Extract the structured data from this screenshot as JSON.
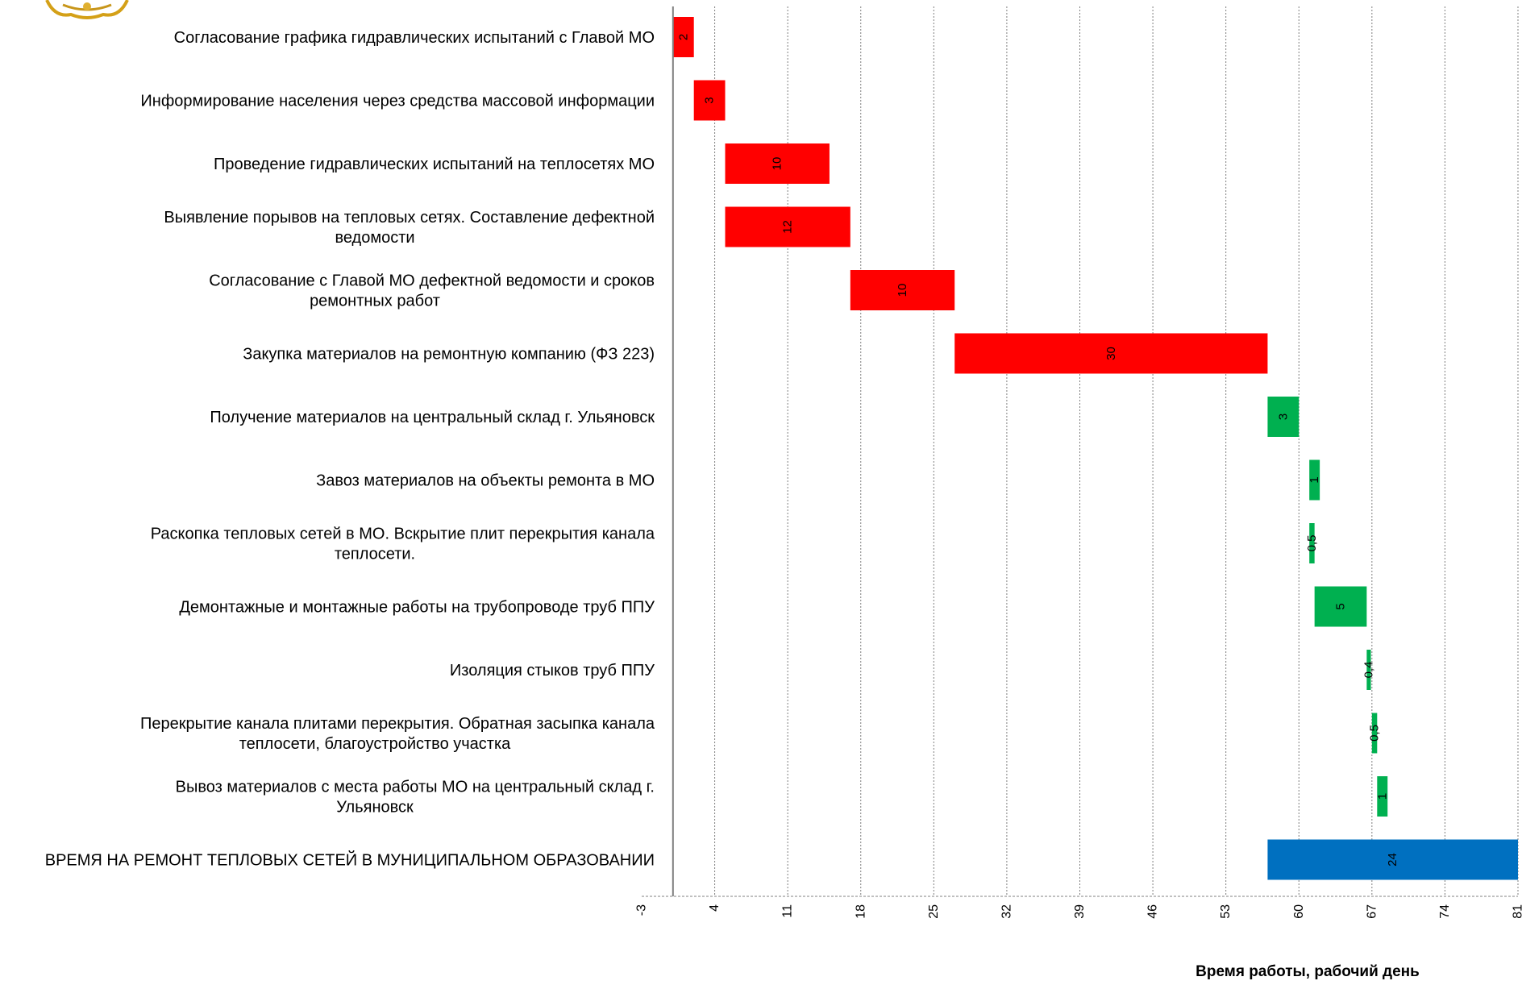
{
  "chart_data": {
    "type": "bar",
    "orientation": "horizontal",
    "stacked_offset": true,
    "xlabel": "Время работы, рабочий день",
    "xlim": [
      -3,
      81
    ],
    "xticks": [
      -3,
      4,
      11,
      18,
      25,
      32,
      39,
      46,
      53,
      60,
      67,
      74,
      81
    ],
    "grid": "vertical-dotted",
    "colors": {
      "red": "#ff0000",
      "green": "#00b050",
      "blue": "#0070c0"
    },
    "tasks": [
      {
        "label": "Согласование графика гидравлических испытаний с Главой МО",
        "start": 0,
        "duration": 2,
        "duration_label": "2",
        "color": "#ff0000"
      },
      {
        "label": "Информирование населения через средства массовой информации",
        "start": 2,
        "duration": 3,
        "duration_label": "3",
        "color": "#ff0000"
      },
      {
        "label": "Проведение гидравлических испытаний на теплосетях МО",
        "start": 5,
        "duration": 10,
        "duration_label": "10",
        "color": "#ff0000"
      },
      {
        "label": "Выявление порывов на тепловых сетях. Составление дефектной ведомости",
        "start": 5,
        "duration": 12,
        "duration_label": "12",
        "color": "#ff0000"
      },
      {
        "label": "Согласование с Главой МО дефектной ведомости и сроков ремонтных работ",
        "start": 17,
        "duration": 10,
        "duration_label": "10",
        "color": "#ff0000"
      },
      {
        "label": "Закупка материалов на ремонтную компанию (ФЗ 223)",
        "start": 27,
        "duration": 30,
        "duration_label": "30",
        "color": "#ff0000"
      },
      {
        "label": "Получение материалов на центральный склад г. Ульяновск",
        "start": 57,
        "duration": 3,
        "duration_label": "3",
        "color": "#00b050"
      },
      {
        "label": "Завоз материалов на объекты ремонта в МО",
        "start": 61,
        "duration": 1,
        "duration_label": "1",
        "color": "#00b050"
      },
      {
        "label": "Раскопка тепловых сетей в МО. Вскрытие плит перекрытия канала теплосети.",
        "start": 61,
        "duration": 0.5,
        "duration_label": "0,5",
        "color": "#00b050"
      },
      {
        "label": "Демонтажные и монтажные работы на трубопроводе труб ППУ",
        "start": 61.5,
        "duration": 5,
        "duration_label": "5",
        "color": "#00b050"
      },
      {
        "label": "Изоляция стыков труб ППУ",
        "start": 66.5,
        "duration": 0.4,
        "duration_label": "0,4",
        "color": "#00b050"
      },
      {
        "label": "Перекрытие канала плитами перекрытия. Обратная засыпка канала теплосети, благоустройство участка",
        "start": 67,
        "duration": 0.5,
        "duration_label": "0,5",
        "color": "#00b050"
      },
      {
        "label": "Вывоз материалов с места работы МО на центральный склад г. Ульяновск",
        "start": 67.5,
        "duration": 1,
        "duration_label": "1",
        "color": "#00b050"
      },
      {
        "label": "ВРЕМЯ НА РЕМОНТ ТЕПЛОВЫХ СЕТЕЙ В МУНИЦИПАЛЬНОМ ОБРАЗОВАНИИ",
        "start": 57,
        "duration": 24,
        "duration_label": "24",
        "color": "#0070c0"
      }
    ]
  }
}
